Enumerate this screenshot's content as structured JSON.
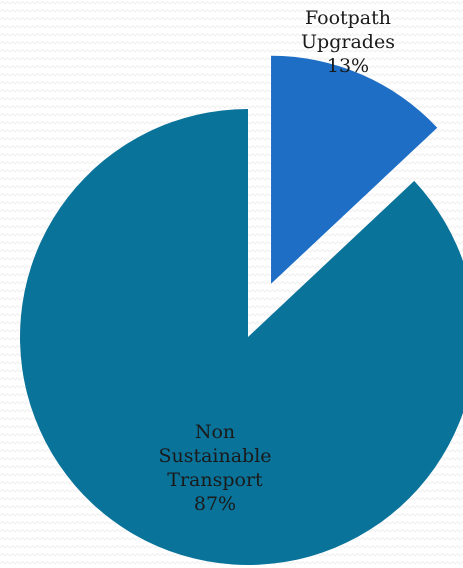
{
  "chart_data": {
    "type": "pie",
    "categories": [
      "Footpath Upgrades",
      "Non Sustainable Transport"
    ],
    "values": [
      13,
      87
    ],
    "slices": [
      {
        "name": "Footpath Upgrades",
        "value": 13,
        "label_lines": [
          "Footpath",
          "Upgrades",
          "13%"
        ],
        "color": "#1f6ec6",
        "exploded": true
      },
      {
        "name": "Non Sustainable Transport",
        "value": 87,
        "label_lines": [
          "Non",
          "Sustainable",
          "Transport",
          "87%"
        ],
        "color": "#0a739a",
        "exploded": false
      }
    ],
    "title": "",
    "legend": "none"
  }
}
